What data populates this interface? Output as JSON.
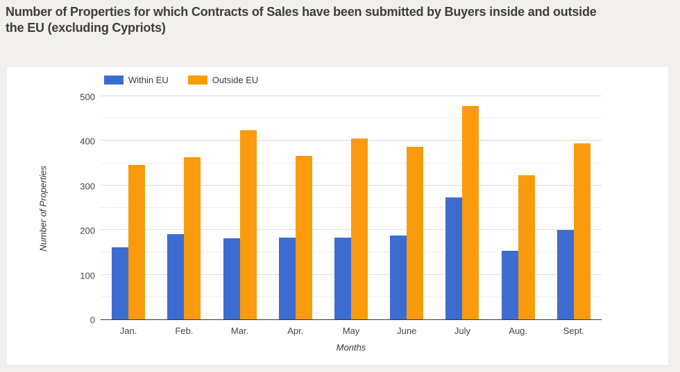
{
  "header": {
    "title": "Number of Properties for which Contracts of Sales have been submitted by Buyers inside and outside the EU (excluding Cypriots)"
  },
  "chart_data": {
    "type": "bar",
    "title": "Number of Properties for which Contracts of Sales have been submitted by Buyers inside and outside the EU (excluding Cypriots)",
    "categories": [
      "Jan.",
      "Feb.",
      "Mar.",
      "Apr.",
      "May",
      "June",
      "July",
      "Aug.",
      "Sept."
    ],
    "series": [
      {
        "name": "Within EU",
        "color": "#3D6CD1",
        "values": [
          161,
          191,
          182,
          184,
          184,
          188,
          274,
          153,
          200
        ]
      },
      {
        "name": "Outside EU",
        "color": "#F99B0C",
        "values": [
          347,
          363,
          424,
          366,
          405,
          386,
          479,
          323,
          394
        ]
      }
    ],
    "xlabel": "Months",
    "ylabel": "Number of Properties",
    "ylim": [
      0,
      500
    ],
    "yticks": [
      0,
      100,
      200,
      300,
      400,
      500
    ],
    "ytick_step": 100,
    "minor_gridline_step": 50,
    "grid": true,
    "legend_position": "top"
  }
}
